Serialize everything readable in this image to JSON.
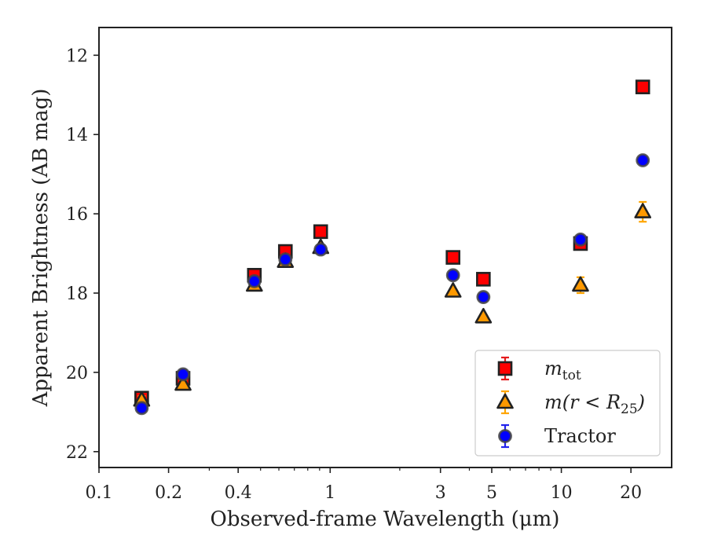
{
  "chart_data": {
    "type": "scatter",
    "xlabel": "Observed-frame Wavelength (μm)",
    "ylabel": "Apparent Brightness (AB mag)",
    "x_scale": "log",
    "xlim": [
      0.1,
      30
    ],
    "ylim": [
      22.4,
      11.3
    ],
    "y_inverted": true,
    "x_ticks": [
      {
        "value": 0.1,
        "label": "0.1"
      },
      {
        "value": 0.2,
        "label": "0.2"
      },
      {
        "value": 0.4,
        "label": "0.4"
      },
      {
        "value": 1,
        "label": "1"
      },
      {
        "value": 3,
        "label": "3"
      },
      {
        "value": 5,
        "label": "5"
      },
      {
        "value": 10,
        "label": "10"
      },
      {
        "value": 20,
        "label": "20"
      }
    ],
    "y_ticks": [
      {
        "value": 12,
        "label": "12"
      },
      {
        "value": 14,
        "label": "14"
      },
      {
        "value": 16,
        "label": "16"
      },
      {
        "value": 18,
        "label": "18"
      },
      {
        "value": 20,
        "label": "20"
      },
      {
        "value": 22,
        "label": "22"
      }
    ],
    "grid": false,
    "legend_position": "lower-right",
    "series": [
      {
        "name": "m_tot",
        "label_main": "m",
        "label_sub": "tot",
        "marker": "square",
        "color": "#ff0000",
        "edge_color": "#222222",
        "error_color": "#e41a1c",
        "points": [
          {
            "x": 0.153,
            "y": 20.65,
            "err": 0.12
          },
          {
            "x": 0.231,
            "y": 20.15,
            "err": 0.1
          },
          {
            "x": 0.47,
            "y": 17.55,
            "err": 0.05
          },
          {
            "x": 0.64,
            "y": 16.95,
            "err": 0.05
          },
          {
            "x": 0.91,
            "y": 16.45,
            "err": 0.05
          },
          {
            "x": 3.4,
            "y": 17.1,
            "err": 0.05
          },
          {
            "x": 4.6,
            "y": 17.65,
            "err": 0.05
          },
          {
            "x": 12.1,
            "y": 16.75,
            "err": 0.08
          },
          {
            "x": 22.5,
            "y": 12.8,
            "err": 0.05
          }
        ]
      },
      {
        "name": "m(r<R25)",
        "label_main": "m(r < R",
        "label_sub": "25",
        "label_end": ")",
        "marker": "triangle",
        "color": "#ff9900",
        "edge_color": "#222222",
        "error_color": "#ffa500",
        "points": [
          {
            "x": 0.153,
            "y": 20.7,
            "err": 0.1
          },
          {
            "x": 0.231,
            "y": 20.3,
            "err": 0.1
          },
          {
            "x": 0.47,
            "y": 17.8,
            "err": 0.05
          },
          {
            "x": 0.64,
            "y": 17.2,
            "err": 0.05
          },
          {
            "x": 0.91,
            "y": 16.85,
            "err": 0.05
          },
          {
            "x": 3.4,
            "y": 17.95,
            "err": 0.05
          },
          {
            "x": 4.6,
            "y": 18.6,
            "err": 0.05
          },
          {
            "x": 12.1,
            "y": 17.8,
            "err": 0.2
          },
          {
            "x": 22.5,
            "y": 15.95,
            "err": 0.25
          }
        ]
      },
      {
        "name": "Tractor",
        "label_main": "Tractor",
        "marker": "circle",
        "color": "#0000ff",
        "edge_color": "#444444",
        "error_color": "#2222ee",
        "points": [
          {
            "x": 0.153,
            "y": 20.9,
            "err": 0.1
          },
          {
            "x": 0.231,
            "y": 20.05,
            "err": 0.1
          },
          {
            "x": 0.47,
            "y": 17.7,
            "err": 0.05
          },
          {
            "x": 0.64,
            "y": 17.15,
            "err": 0.05
          },
          {
            "x": 0.91,
            "y": 16.9,
            "err": 0.05
          },
          {
            "x": 3.4,
            "y": 17.55,
            "err": 0.05
          },
          {
            "x": 4.6,
            "y": 18.1,
            "err": 0.05
          },
          {
            "x": 12.1,
            "y": 16.65,
            "err": 0.05
          },
          {
            "x": 22.5,
            "y": 14.65,
            "err": 0.05
          }
        ]
      }
    ]
  }
}
